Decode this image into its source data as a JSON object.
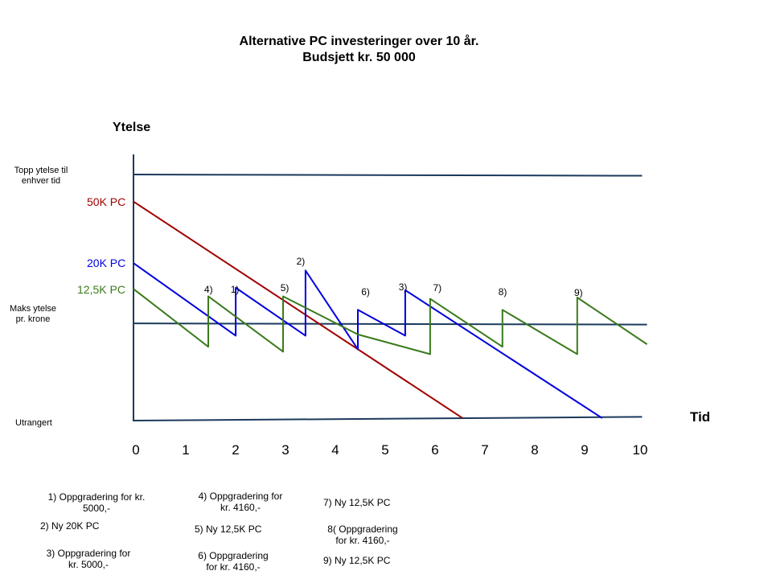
{
  "chart_data": {
    "type": "line",
    "title_line1": "Alternative PC investeringer over 10 år.",
    "title_line2": "Budsjett kr. 50 000",
    "ylabel": "Ytelse",
    "xlabel": "Tid",
    "xlim": [
      0,
      10
    ],
    "x_ticks": [
      "0",
      "1",
      "2",
      "3",
      "4",
      "5",
      "6",
      "7",
      "8",
      "9",
      "10"
    ],
    "reference_lines": [
      {
        "label": "Topp ytelse til enhver tid",
        "points": [
          [
            0,
            100
          ],
          [
            10.2,
            99.5
          ]
        ]
      },
      {
        "label": "Maks ytelse pr. krone",
        "points": [
          [
            0,
            39.5
          ],
          [
            10.3,
            39
          ]
        ]
      },
      {
        "label": "Utrangert",
        "points": [
          [
            0,
            0
          ],
          [
            10.2,
            1.5
          ]
        ]
      }
    ],
    "series": [
      {
        "name": "50K PC",
        "color": "#a00000",
        "points": [
          [
            0,
            89
          ],
          [
            6.6,
            1
          ]
        ]
      },
      {
        "name": "20K PC",
        "color": "#0000dd",
        "points": [
          [
            0,
            64
          ],
          [
            2.05,
            34.5
          ],
          [
            2.05,
            54
          ],
          [
            3.45,
            34.5
          ],
          [
            3.45,
            61
          ],
          [
            4.5,
            29
          ],
          [
            4.5,
            45
          ],
          [
            5.45,
            34.5
          ],
          [
            5.45,
            53
          ],
          [
            9.4,
            1
          ]
        ]
      },
      {
        "name": "12,5K PC",
        "color": "#3a7a1c",
        "points": [
          [
            0,
            53.5
          ],
          [
            1.5,
            30
          ],
          [
            1.5,
            50.5
          ],
          [
            3.0,
            28
          ],
          [
            3.0,
            50.5
          ],
          [
            4.5,
            35
          ],
          [
            5.95,
            27
          ],
          [
            5.95,
            49.5
          ],
          [
            7.4,
            30
          ],
          [
            7.4,
            45
          ],
          [
            8.9,
            27
          ],
          [
            8.9,
            50
          ],
          [
            10.3,
            31
          ]
        ]
      }
    ],
    "annotations": [
      {
        "text": "4)",
        "x": 1.45,
        "y": 53
      },
      {
        "text": "1)",
        "x": 1.98,
        "y": 53
      },
      {
        "text": "5)",
        "x": 2.98,
        "y": 53.5
      },
      {
        "text": "2)",
        "x": 3.3,
        "y": 64.5
      },
      {
        "text": "6)",
        "x": 4.6,
        "y": 52
      },
      {
        "text": "3)",
        "x": 5.35,
        "y": 54
      },
      {
        "text": "7)",
        "x": 6.04,
        "y": 53.5
      },
      {
        "text": "8)",
        "x": 7.35,
        "y": 52
      },
      {
        "text": "9)",
        "x": 8.87,
        "y": 51.5
      }
    ]
  },
  "reference_labels": {
    "top": "Topp ytelse til enhver tid",
    "top_line1": "Topp ytelse til",
    "top_line2": "enhver tid",
    "max_line1": "Maks ytelse",
    "max_line2": "pr. krone",
    "bottom": "Utrangert"
  },
  "notes": {
    "n1_line1": "1) Oppgradering for kr.",
    "n1_line2": "5000,-",
    "n2": "2) Ny 20K PC",
    "n3_line1": "3) Oppgradering for",
    "n3_line2": "kr. 5000,-",
    "n4_line1": "4) Oppgradering for",
    "n4_line2": "kr. 4160,-",
    "n5": "5) Ny 12,5K PC",
    "n6_line1": "6) Oppgradering",
    "n6_line2": "for kr. 4160,-",
    "n7": "7) Ny 12,5K PC",
    "n8_line1": "8( Oppgradering",
    "n8_line2": "for kr. 4160,-",
    "n9": "9) Ny 12,5K PC"
  },
  "colors": {
    "axis": "#1a3a5c",
    "ref_line": "#1a3a5c",
    "series_50k": "#a00000",
    "series_20k": "#0000dd",
    "series_125k": "#3a7a1c"
  }
}
